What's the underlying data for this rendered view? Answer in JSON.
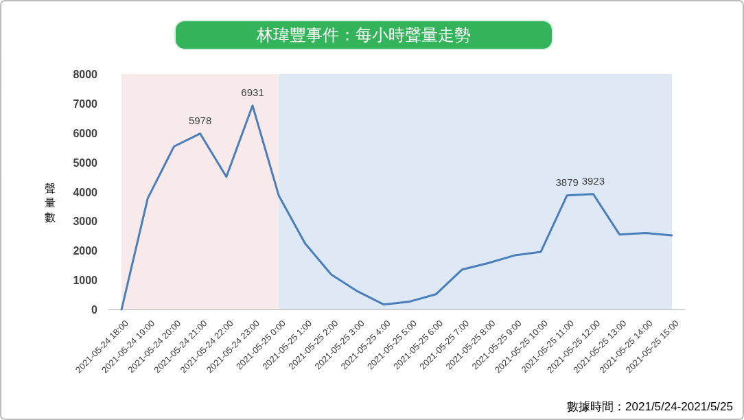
{
  "chart_data": {
    "type": "line",
    "title": "林瑋豐事件：每小時聲量走勢",
    "ylabel": "聲量數",
    "categories": [
      "2021-05-24 18:00",
      "2021-05-24 19:00",
      "2021-05-24 20:00",
      "2021-05-24 21:00",
      "2021-05-24 22:00",
      "2021-05-24 23:00",
      "2021-05-25 0:00",
      "2021-05-25 1:00",
      "2021-05-25 2:00",
      "2021-05-25 3:00",
      "2021-05-25 4:00",
      "2021-05-25 5:00",
      "2021-05-25 6:00",
      "2021-05-25 7:00",
      "2021-05-25 8:00",
      "2021-05-25 9:00",
      "2021-05-25 10:00",
      "2021-05-25 11:00",
      "2021-05-25 12:00",
      "2021-05-25 13:00",
      "2021-05-25 14:00",
      "2021-05-25 15:00"
    ],
    "values": [
      0,
      3780,
      5540,
      5978,
      4510,
      6931,
      3870,
      2250,
      1190,
      620,
      170,
      270,
      520,
      1360,
      1580,
      1840,
      1960,
      3879,
      3923,
      2550,
      2600,
      2520
    ],
    "value_labels": [
      null,
      null,
      null,
      "5978",
      null,
      "6931",
      null,
      null,
      null,
      null,
      null,
      null,
      null,
      null,
      null,
      null,
      null,
      "3879",
      "3923",
      null,
      null,
      null
    ],
    "color": "#4a7ebb",
    "ylim": [
      0,
      8000
    ],
    "yticks": [
      0,
      1000,
      2000,
      3000,
      4000,
      5000,
      6000,
      7000,
      8000
    ],
    "bands": [
      {
        "axis": "x",
        "from": "2021-05-24 18:00",
        "to": "2021-05-25 0:00",
        "color": "#f8eaea"
      },
      {
        "axis": "x",
        "from": "2021-05-25 0:00",
        "to": "2021-05-25 15:00",
        "color": "#dfe9f6"
      }
    ],
    "annotations": [
      "數據時間：2021/5/24-2021/5/25"
    ]
  }
}
